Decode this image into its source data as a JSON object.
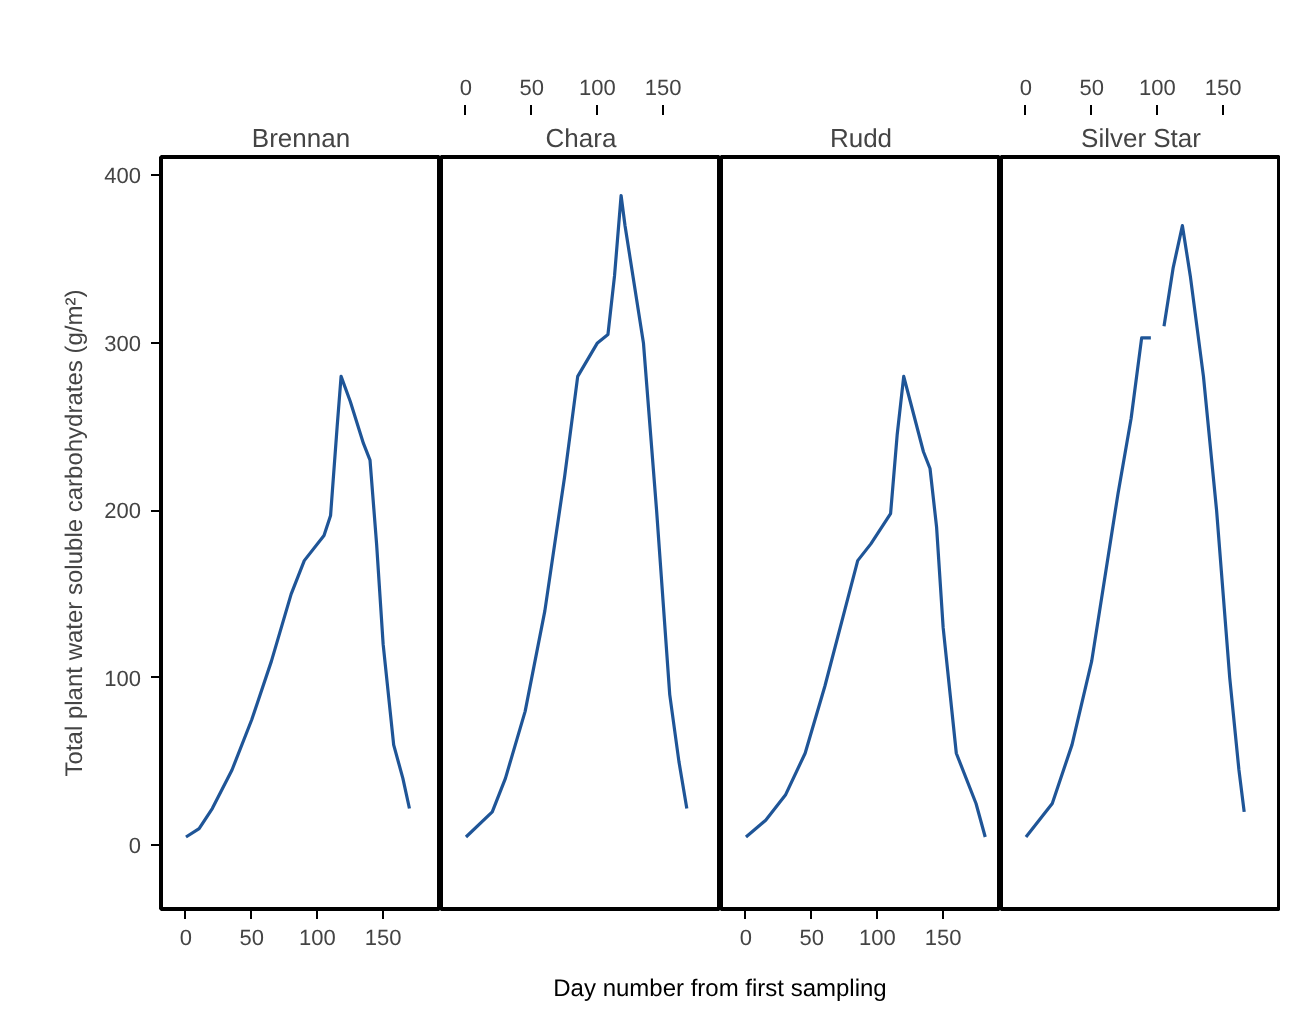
{
  "chart_data": [
    {
      "type": "line",
      "title": "Brennan",
      "ylabel": "Total plant water soluble carbohydrates (g/m²)",
      "xlabel": "Day number from first sampling",
      "xlim": [
        -19,
        194
      ],
      "xticks": [
        0,
        50,
        100,
        150
      ],
      "ylim": [
        -38,
        411
      ],
      "yticks": [
        0,
        100,
        200,
        300,
        400
      ],
      "grid": false,
      "series": [
        {
          "color": "#1f5597",
          "x": [
            0,
            10,
            20,
            35,
            50,
            65,
            80,
            90,
            105,
            110,
            115,
            118,
            125,
            135,
            140,
            145,
            150,
            158,
            165,
            170
          ],
          "values": [
            5,
            10,
            22,
            45,
            75,
            110,
            150,
            170,
            185,
            197,
            250,
            280,
            265,
            240,
            230,
            180,
            120,
            60,
            40,
            22
          ]
        }
      ]
    },
    {
      "type": "line",
      "title": "Chara",
      "xlim": [
        -19,
        194
      ],
      "xticks": [
        0,
        50,
        100,
        150
      ],
      "ylim": [
        -38,
        411
      ],
      "yticks": [
        0,
        100,
        200,
        300,
        400
      ],
      "tick_labels": "x",
      "grid": false,
      "series": [
        {
          "color": "#1f5597",
          "x": [
            0,
            20,
            30,
            45,
            60,
            75,
            85,
            100,
            108,
            113,
            118,
            121,
            125,
            135,
            145,
            155,
            162,
            168
          ],
          "values": [
            5,
            20,
            40,
            80,
            140,
            220,
            280,
            300,
            305,
            340,
            388,
            370,
            350,
            300,
            200,
            90,
            50,
            22
          ]
        }
      ]
    },
    {
      "type": "line",
      "title": "Rudd",
      "xlim": [
        -19,
        194
      ],
      "xticks": [
        0,
        50,
        100,
        150
      ],
      "ylim": [
        -38,
        411
      ],
      "yticks": [
        0,
        100,
        200,
        300,
        400
      ],
      "tick_labels": "x",
      "grid": false,
      "series": [
        {
          "color": "#1f5597",
          "x": [
            0,
            15,
            30,
            45,
            60,
            75,
            85,
            95,
            110,
            115,
            120,
            125,
            135,
            140,
            145,
            150,
            160,
            175,
            182
          ],
          "values": [
            5,
            15,
            30,
            55,
            95,
            140,
            170,
            180,
            198,
            245,
            280,
            265,
            235,
            225,
            190,
            130,
            55,
            25,
            5
          ]
        }
      ]
    },
    {
      "type": "line",
      "title": "Silver Star",
      "xlim": [
        -19,
        194
      ],
      "xticks": [
        0,
        50,
        100,
        150
      ],
      "ylim": [
        -38,
        411
      ],
      "yticks": [
        0,
        100,
        200,
        300,
        400
      ],
      "tick_labels": "x",
      "grid": false,
      "series": [
        {
          "color": "#1f5597",
          "x": [
            0,
            20,
            35,
            50,
            60,
            70,
            80,
            88,
            95,
            100,
            105,
            112,
            119,
            125,
            135,
            145,
            155,
            162,
            166
          ],
          "values": [
            5,
            25,
            60,
            110,
            160,
            210,
            255,
            303,
            303,
            null,
            310,
            345,
            370,
            340,
            280,
            200,
            100,
            45,
            20
          ]
        }
      ]
    }
  ]
}
